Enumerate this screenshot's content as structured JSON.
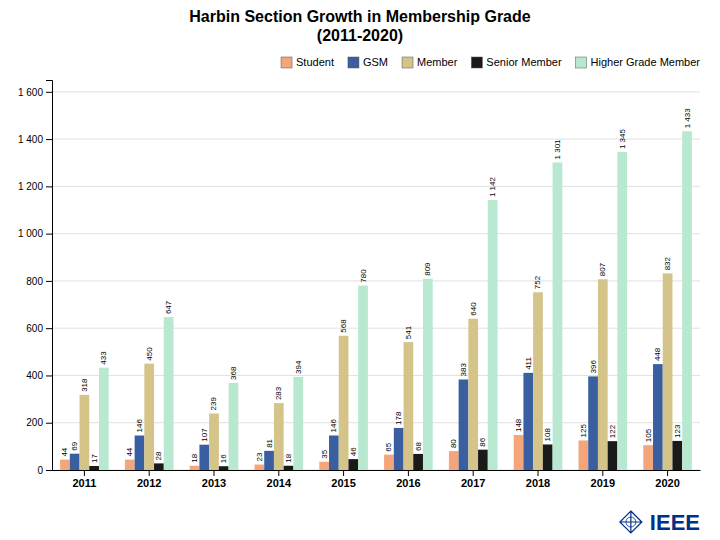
{
  "chart_data": {
    "type": "bar",
    "title": "Harbin Section Growth in Membership Grade\n(2011-2020)",
    "categories": [
      "2011",
      "2012",
      "2013",
      "2014",
      "2015",
      "2016",
      "2017",
      "2018",
      "2019",
      "2020"
    ],
    "series": [
      {
        "name": "Student",
        "color": "#f4a57a",
        "values": [
          44,
          44,
          18,
          23,
          35,
          65,
          80,
          148,
          125,
          105
        ]
      },
      {
        "name": "GSM",
        "color": "#3a5fa0",
        "values": [
          69,
          146,
          107,
          81,
          146,
          178,
          383,
          411,
          396,
          448
        ]
      },
      {
        "name": "Member",
        "color": "#d4c48a",
        "values": [
          318,
          450,
          239,
          283,
          568,
          541,
          640,
          752,
          807,
          832
        ]
      },
      {
        "name": "Senior Member",
        "color": "#1a1a1a",
        "values": [
          17,
          28,
          16,
          18,
          46,
          68,
          86,
          108,
          122,
          123
        ]
      },
      {
        "name": "Higher Grade Member",
        "color": "#b8e8d0",
        "values": [
          433,
          647,
          368,
          394,
          780,
          809,
          1142,
          1301,
          1345,
          1433
        ],
        "value_labels": [
          "433",
          "647",
          "368",
          "394",
          "780",
          "809",
          "1 142",
          "1 301",
          "1 345",
          "1 433"
        ]
      }
    ],
    "ylim": [
      0,
      1650
    ],
    "yticks": [
      0,
      200,
      400,
      600,
      800,
      {
        "value": 1000,
        "label": "1 000"
      },
      {
        "value": 1200,
        "label": "1 200"
      },
      {
        "value": 1400,
        "label": "1 400"
      },
      {
        "value": 1600,
        "label": "1 600"
      }
    ],
    "grid": true,
    "legend": "upper right",
    "data_labels": true,
    "annotations": [
      "IEEE"
    ]
  }
}
